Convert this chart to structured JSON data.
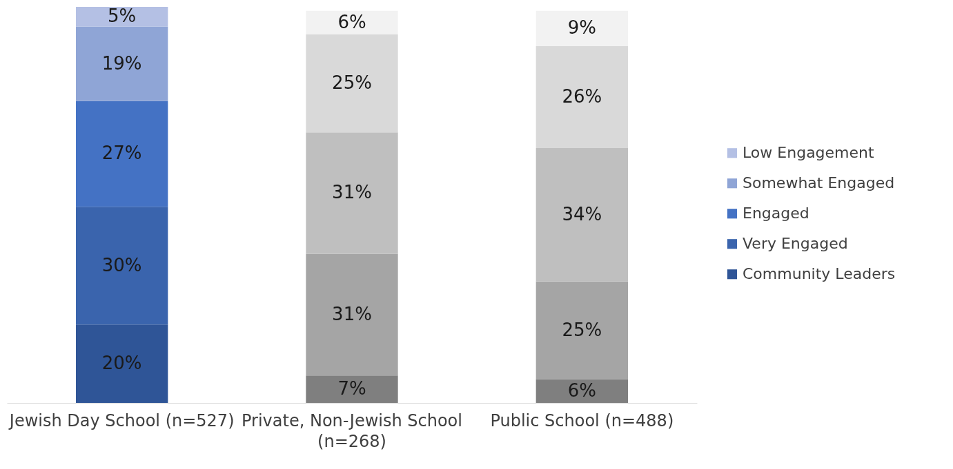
{
  "chart_data": {
    "type": "bar",
    "stacked": true,
    "legend": "right",
    "categories": [
      "Jewish Day School (n=527)",
      "Private, Non-Jewish School (n=268)",
      "Public School (n=488)"
    ],
    "series": [
      {
        "name": "Community Leaders",
        "color": "#2f5597",
        "colors": [
          "#2f5597",
          "#7f7f7f",
          "#7f7f7f"
        ],
        "values": [
          20,
          7,
          6
        ],
        "value_labels": [
          "20%",
          "7%",
          "6%"
        ]
      },
      {
        "name": "Very Engaged",
        "color": "#3a64ad",
        "colors": [
          "#3a64ad",
          "#a5a5a5",
          "#a5a5a5"
        ],
        "values": [
          30,
          31,
          25
        ],
        "value_labels": [
          "30%",
          "31%",
          "25%"
        ]
      },
      {
        "name": "Engaged",
        "color": "#4472c4",
        "colors": [
          "#4472c4",
          "#bfbfbf",
          "#bfbfbf"
        ],
        "values": [
          27,
          31,
          34
        ],
        "value_labels": [
          "27%",
          "31%",
          "34%"
        ]
      },
      {
        "name": "Somewhat Engaged",
        "color": "#8fa5d6",
        "colors": [
          "#8fa5d6",
          "#d9d9d9",
          "#d9d9d9"
        ],
        "values": [
          19,
          25,
          26
        ],
        "value_labels": [
          "19%",
          "25%",
          "26%"
        ]
      },
      {
        "name": "Low Engagement",
        "color": "#b4c0e4",
        "colors": [
          "#b4c0e4",
          "#f2f2f2",
          "#f2f2f2"
        ],
        "values": [
          5,
          6,
          9
        ],
        "value_labels": [
          "5%",
          "6%",
          "9%"
        ]
      }
    ]
  }
}
